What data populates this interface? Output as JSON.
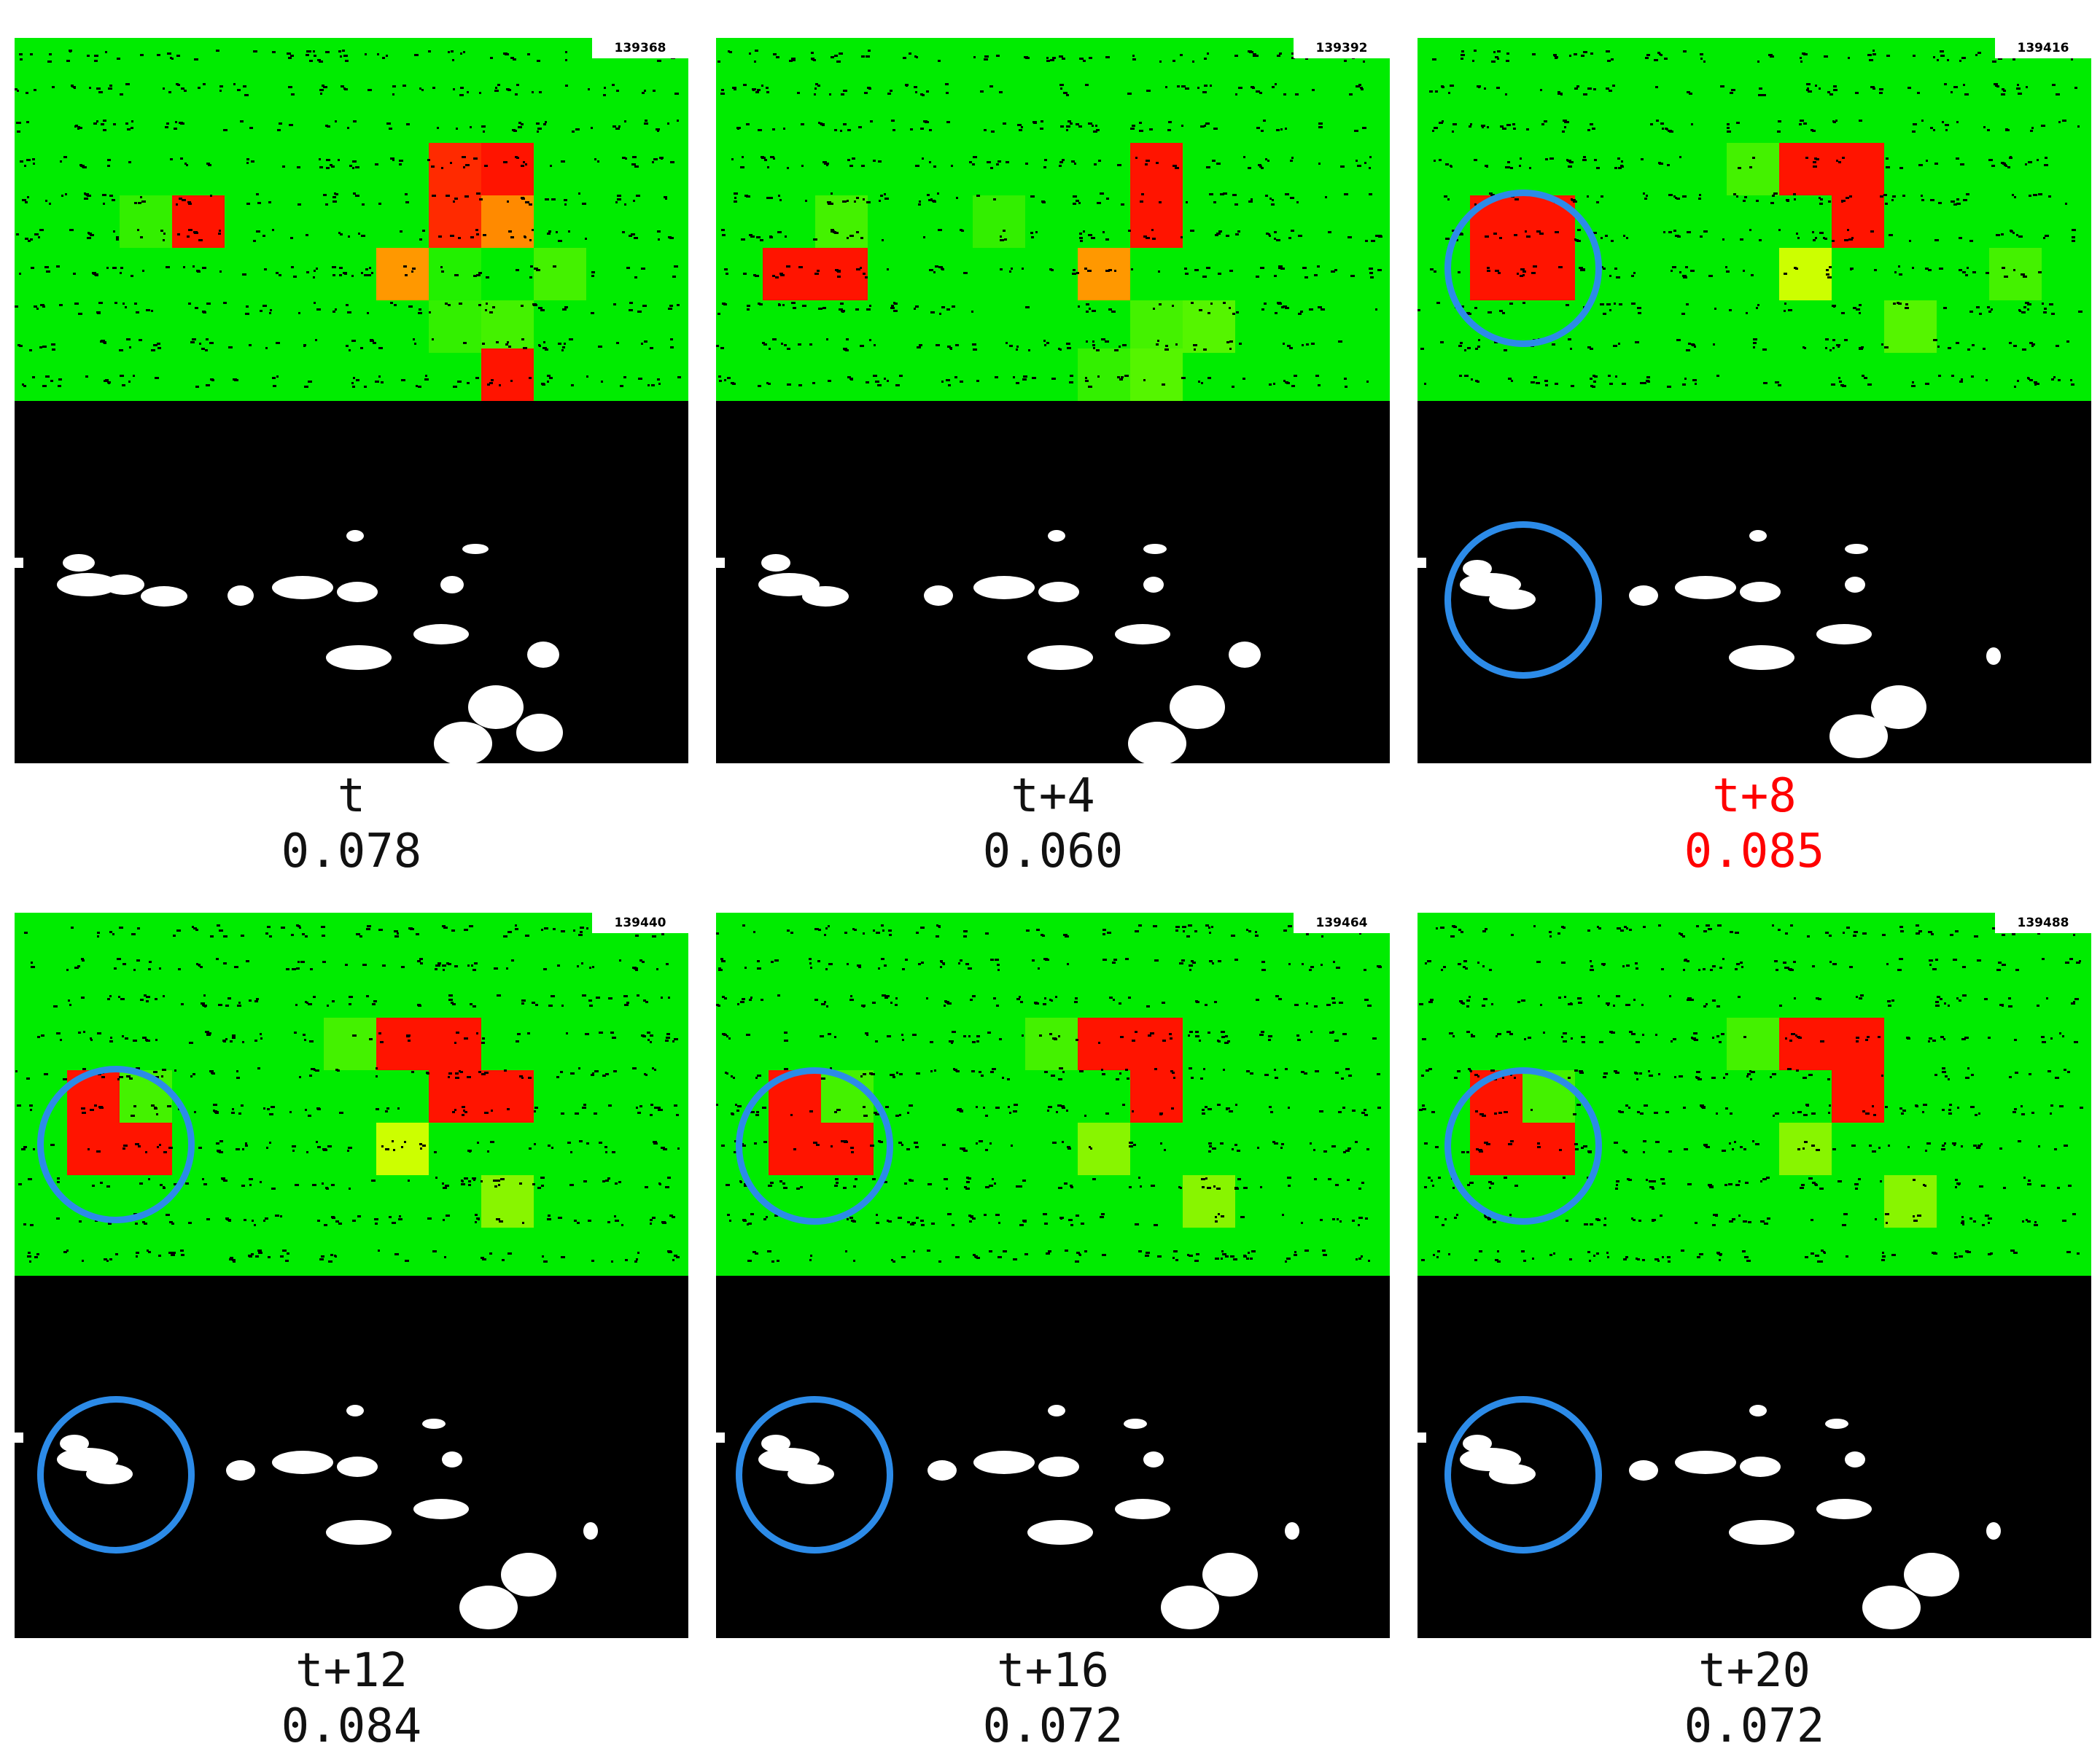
{
  "colors": {
    "background_field": "#00ec00",
    "alert_red": "#ff1400",
    "alert_orange": "#ff8a00",
    "mild_green": "#55f500",
    "yellow_green": "#ccff00",
    "mask_background": "#000000",
    "blob_white": "#ffffff",
    "circle_blue": "#2c8be8",
    "highlight_text": "#ff0000"
  },
  "panels": [
    {
      "frame_id": "139368",
      "time_label": "t",
      "score": "0.078",
      "highlighted": false,
      "circled": false
    },
    {
      "frame_id": "139392",
      "time_label": "t+4",
      "score": "0.060",
      "highlighted": false,
      "circled": false
    },
    {
      "frame_id": "139416",
      "time_label": "t+8",
      "score": "0.085",
      "highlighted": true,
      "circled": true
    },
    {
      "frame_id": "139440",
      "time_label": "t+12",
      "score": "0.084",
      "highlighted": false,
      "circled": true
    },
    {
      "frame_id": "139464",
      "time_label": "t+16",
      "score": "0.072",
      "highlighted": false,
      "circled": true
    },
    {
      "frame_id": "139488",
      "time_label": "t+20",
      "score": "0.072",
      "highlighted": false,
      "circled": true
    }
  ]
}
